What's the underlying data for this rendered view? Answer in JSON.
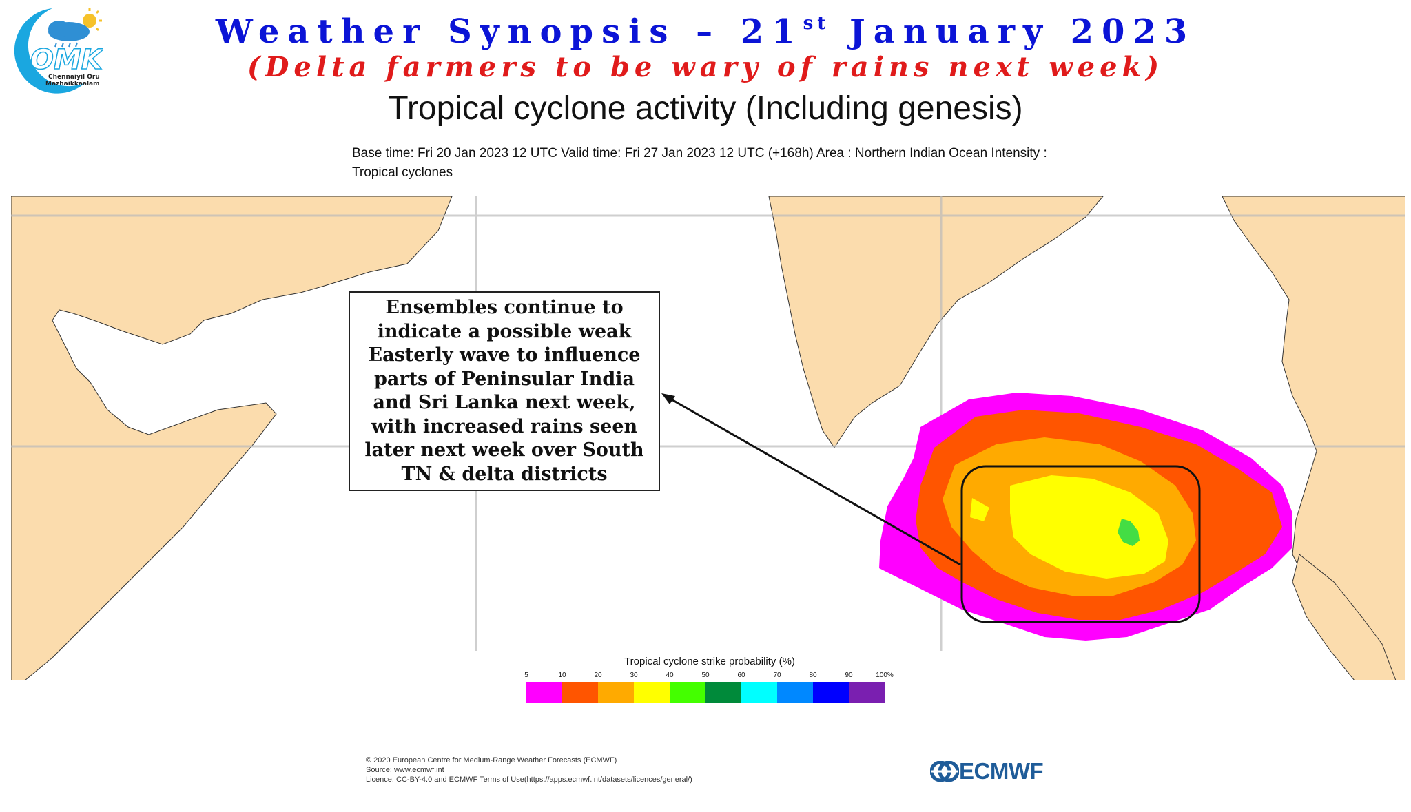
{
  "header": {
    "title_main": "Weather Synopsis – 21",
    "title_sup": "st",
    "title_end": " January 2023",
    "subtitle": "(Delta farmers to be wary of rains next week)",
    "heading": "Tropical cyclone activity (Including genesis)",
    "meta_line1": "Base time: Fri 20 Jan 2023 12 UTC Valid time: Fri 27 Jan 2023 12 UTC (+168h) Area : Northern Indian Ocean Intensity :",
    "meta_line2": "Tropical cyclones"
  },
  "logo": {
    "brand": "OMK",
    "line1": "Chennaiyil Oru",
    "line2": "Mazhaikkaalam"
  },
  "callout": {
    "text": "Ensembles continue to indicate a possible weak Easterly wave to influence parts of Peninsular India and Sri Lanka next week, with increased rains seen later next week over South TN & delta districts"
  },
  "legend": {
    "title": "Tropical cyclone strike probability (%)",
    "ticks": [
      "5",
      "10",
      "20",
      "30",
      "40",
      "50",
      "60",
      "70",
      "80",
      "90",
      "100%"
    ],
    "colors": [
      "#ff00ff",
      "#ff5500",
      "#ffaa00",
      "#ffff00",
      "#44ff00",
      "#008a3a",
      "#00ffff",
      "#0088ff",
      "#0000ff",
      "#7a1fb0"
    ]
  },
  "colors": {
    "land": "#fbdcad",
    "ocean": "#ffffff",
    "title_blue": "#0b14d6",
    "subtitle_red": "#e01b1b",
    "ecmwf_blue": "#1f5c99"
  },
  "footer": {
    "line1": "© 2020 European Centre for Medium-Range Weather Forecasts (ECMWF)",
    "line2": "Source: www.ecmwf.int",
    "line3": "Licence: CC-BY-4.0 and ECMWF Terms of Use(https://apps.ecmwf.int/datasets/licences/general/)",
    "brand": "ECMWF"
  }
}
